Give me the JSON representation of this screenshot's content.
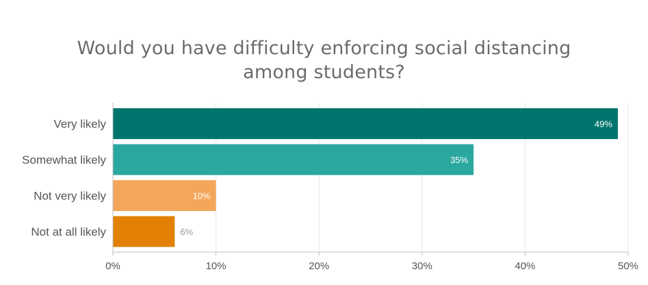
{
  "chart_data": {
    "type": "bar",
    "orientation": "horizontal",
    "title_lines": [
      "Would you have difficulty enforcing social distancing",
      "among students?"
    ],
    "categories": [
      "Very likely",
      "Somewhat likely",
      "Not very likely",
      "Not at all likely"
    ],
    "values": [
      49,
      35,
      10,
      6
    ],
    "value_labels": [
      "49%",
      "35%",
      "10%",
      "6%"
    ],
    "colors": [
      "#00756e",
      "#2aa79f",
      "#f4a75a",
      "#e28105"
    ],
    "xlim": [
      0,
      50
    ],
    "x_ticks": [
      0,
      10,
      20,
      30,
      40,
      50
    ],
    "x_tick_labels": [
      "0%",
      "10%",
      "20%",
      "30%",
      "40%",
      "50%"
    ],
    "xlabel": "",
    "ylabel": "",
    "grid": true,
    "legend": "none"
  }
}
